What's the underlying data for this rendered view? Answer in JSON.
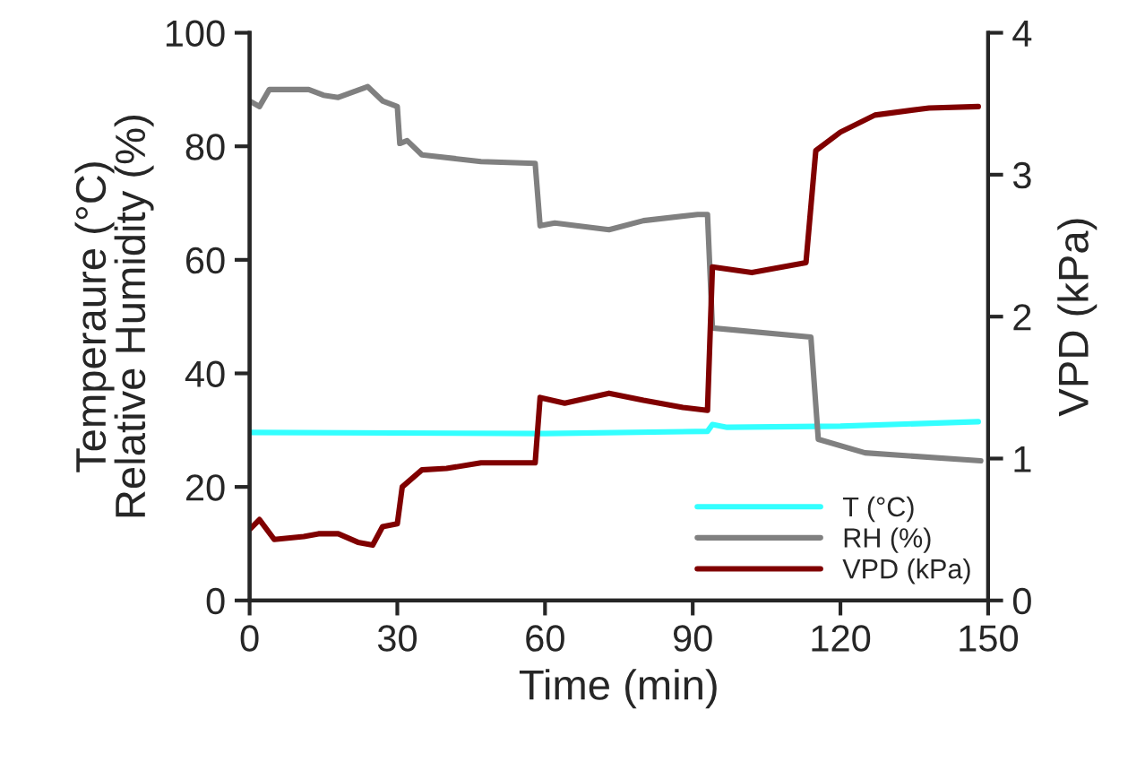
{
  "chart_data": {
    "type": "line",
    "xlabel": "Time (min)",
    "ylabel": "Temperaure (°C)\nRelative Humidity (%)",
    "y2label": "VPD (kPa)",
    "xlim": [
      0,
      150
    ],
    "xticks": [
      0,
      30,
      60,
      90,
      120,
      150
    ],
    "ylim": [
      0,
      100
    ],
    "yticks": [
      0,
      20,
      40,
      60,
      80,
      100
    ],
    "y2lim": [
      0,
      4
    ],
    "y2ticks": [
      0,
      1,
      2,
      3,
      4
    ],
    "grid": false,
    "legend": "bottom right",
    "series": [
      {
        "name": "T (°C)",
        "color": "#33ffff",
        "x": [
          0,
          30,
          60,
          93,
          94,
          97,
          120,
          148
        ],
        "values": [
          29.6,
          29.5,
          29.4,
          29.8,
          31,
          30.5,
          30.7,
          31.5
        ]
      },
      {
        "name": "RH (%)",
        "color": "#808080",
        "x": [
          0,
          2,
          4,
          12,
          15,
          18,
          24,
          27,
          30,
          30.5,
          32,
          35,
          47,
          58,
          59,
          62,
          73,
          80,
          91,
          93,
          94,
          114,
          115.5,
          125,
          148.5
        ],
        "values": [
          88,
          87,
          90,
          90,
          89,
          88.6,
          90.5,
          88,
          87,
          80.5,
          81,
          78.5,
          77.3,
          77,
          66,
          66.5,
          65.3,
          66.9,
          68,
          68,
          48,
          46.4,
          28.4,
          26,
          24.6
        ]
      },
      {
        "name": "VPD (kPa)",
        "color": "#800000",
        "axis": "y2",
        "x": [
          0,
          2,
          5,
          11,
          14,
          18,
          22,
          25,
          27,
          30,
          31,
          35,
          40,
          47,
          58,
          59,
          64,
          73,
          80,
          88,
          93,
          94,
          102,
          113,
          115,
          120,
          127,
          138,
          148
        ],
        "values": [
          0.5,
          0.57,
          0.43,
          0.45,
          0.47,
          0.47,
          0.41,
          0.39,
          0.52,
          0.54,
          0.8,
          0.92,
          0.93,
          0.97,
          0.97,
          1.43,
          1.39,
          1.46,
          1.41,
          1.36,
          1.34,
          2.35,
          2.31,
          2.38,
          3.17,
          3.3,
          3.42,
          3.47,
          3.48
        ]
      }
    ]
  }
}
